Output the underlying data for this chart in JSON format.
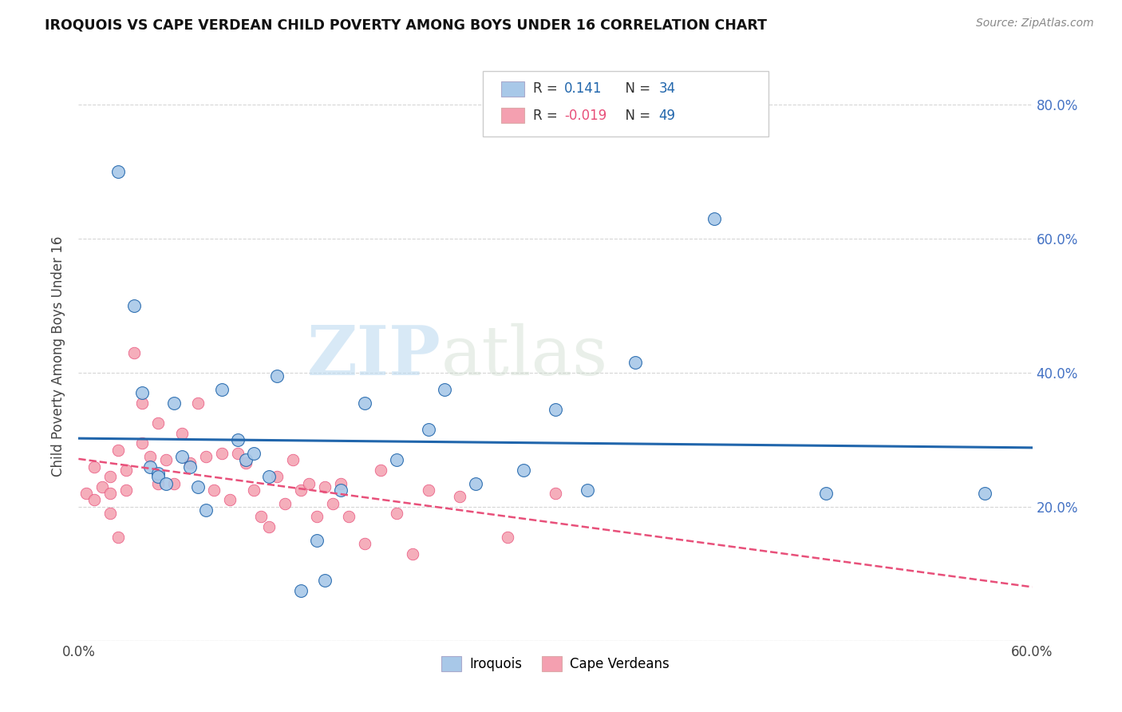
{
  "title": "IROQUOIS VS CAPE VERDEAN CHILD POVERTY AMONG BOYS UNDER 16 CORRELATION CHART",
  "source": "Source: ZipAtlas.com",
  "ylabel": "Child Poverty Among Boys Under 16",
  "x_min": 0.0,
  "x_max": 0.6,
  "y_min": 0.0,
  "y_max": 0.85,
  "x_ticks": [
    0.0,
    0.1,
    0.2,
    0.3,
    0.4,
    0.5,
    0.6
  ],
  "y_ticks": [
    0.0,
    0.2,
    0.4,
    0.6,
    0.8
  ],
  "y_tick_labels_right": [
    "",
    "20.0%",
    "40.0%",
    "60.0%",
    "80.0%"
  ],
  "iroquois_color": "#a8c8e8",
  "cape_verdean_color": "#f4a0b0",
  "iroquois_line_color": "#2166ac",
  "cape_verdean_line_color": "#e8507a",
  "R_iroquois": "0.141",
  "N_iroquois": "34",
  "R_cape_verdean": "-0.019",
  "N_cape_verdean": "49",
  "watermark_zip": "ZIP",
  "watermark_atlas": "atlas",
  "iroquois_x": [
    0.025,
    0.035,
    0.04,
    0.045,
    0.05,
    0.05,
    0.055,
    0.06,
    0.065,
    0.07,
    0.075,
    0.08,
    0.09,
    0.1,
    0.105,
    0.11,
    0.12,
    0.125,
    0.14,
    0.15,
    0.155,
    0.165,
    0.18,
    0.2,
    0.22,
    0.23,
    0.25,
    0.28,
    0.3,
    0.32,
    0.35,
    0.4,
    0.47,
    0.57
  ],
  "iroquois_y": [
    0.7,
    0.5,
    0.37,
    0.26,
    0.25,
    0.245,
    0.235,
    0.355,
    0.275,
    0.26,
    0.23,
    0.195,
    0.375,
    0.3,
    0.27,
    0.28,
    0.245,
    0.395,
    0.075,
    0.15,
    0.09,
    0.225,
    0.355,
    0.27,
    0.315,
    0.375,
    0.235,
    0.255,
    0.345,
    0.225,
    0.415,
    0.63,
    0.22,
    0.22
  ],
  "cape_verdean_x": [
    0.005,
    0.01,
    0.01,
    0.015,
    0.02,
    0.02,
    0.02,
    0.025,
    0.025,
    0.03,
    0.03,
    0.035,
    0.04,
    0.04,
    0.045,
    0.05,
    0.05,
    0.055,
    0.06,
    0.065,
    0.07,
    0.075,
    0.08,
    0.085,
    0.09,
    0.095,
    0.1,
    0.105,
    0.11,
    0.115,
    0.12,
    0.125,
    0.13,
    0.135,
    0.14,
    0.145,
    0.15,
    0.155,
    0.16,
    0.165,
    0.17,
    0.18,
    0.19,
    0.2,
    0.21,
    0.22,
    0.24,
    0.27,
    0.3
  ],
  "cape_verdean_y": [
    0.22,
    0.26,
    0.21,
    0.23,
    0.245,
    0.22,
    0.19,
    0.155,
    0.285,
    0.255,
    0.225,
    0.43,
    0.355,
    0.295,
    0.275,
    0.235,
    0.325,
    0.27,
    0.235,
    0.31,
    0.265,
    0.355,
    0.275,
    0.225,
    0.28,
    0.21,
    0.28,
    0.265,
    0.225,
    0.185,
    0.17,
    0.245,
    0.205,
    0.27,
    0.225,
    0.235,
    0.185,
    0.23,
    0.205,
    0.235,
    0.185,
    0.145,
    0.255,
    0.19,
    0.13,
    0.225,
    0.215,
    0.155,
    0.22
  ],
  "background_color": "#ffffff",
  "grid_color": "#cccccc"
}
